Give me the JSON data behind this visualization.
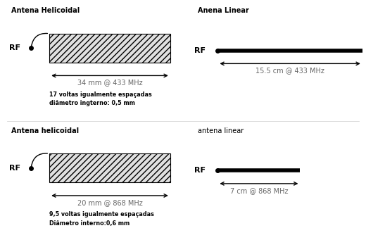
{
  "bg_color": "#ffffff",
  "title1_tl": "Antena Helicoidal",
  "title1_tr": "Anena Linear",
  "title2_bl": "Antena helicoidal",
  "title2_br": "antena linear",
  "dim1_left": "34 mm @ 433 MHz",
  "dim1_right": "15.5 cm @ 433 MHz",
  "dim2_left": "20 mm @ 868 MHz",
  "dim2_right": "7 cm @ 868 MHz",
  "note1": "17 voltas igualmente espaçadas\ndiâmetro ingterno: 0,5 mm",
  "note2": "9,5 voltas igualmente espaçadas\nDiâmetro interno:0,6 mm",
  "hatch_pattern": "////",
  "hatch_color": "#888888",
  "fill_color": "#e0e0e0",
  "arrow_color": "#000000",
  "dim_color": "#666666",
  "text_color": "#000000"
}
